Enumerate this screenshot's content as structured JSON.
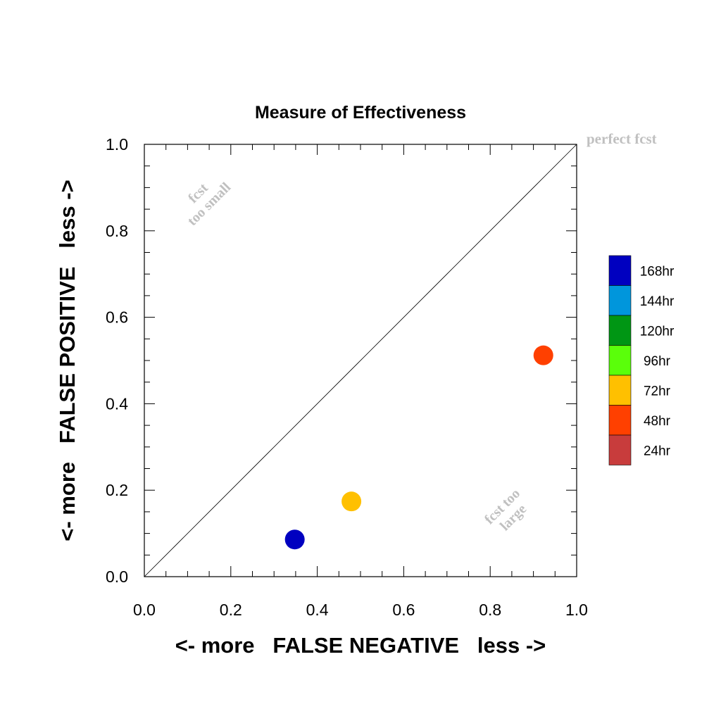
{
  "chart_data": {
    "type": "scatter",
    "title": "Measure of Effectiveness",
    "xlabel": "<- more   FALSE NEGATIVE   less ->",
    "ylabel": "<- more   FALSE POSITIVE   less ->",
    "xlim": [
      0.0,
      1.0
    ],
    "ylim": [
      0.0,
      1.0
    ],
    "xticks": [
      "0.0",
      "0.2",
      "0.4",
      "0.6",
      "0.8",
      "1.0"
    ],
    "yticks": [
      "0.0",
      "0.2",
      "0.4",
      "0.6",
      "0.8",
      "1.0"
    ],
    "grid": false,
    "diagonal_reference": true,
    "annotations": {
      "perfect": "perfect fcst",
      "small_line1": "fcst",
      "small_line2": "too small",
      "large_line1": "fcst too",
      "large_line2": "large"
    },
    "legend": {
      "position": "right",
      "entries": [
        {
          "label": "168hr",
          "color": "#0000c0"
        },
        {
          "label": "144hr",
          "color": "#0096dc"
        },
        {
          "label": "120hr",
          "color": "#009614"
        },
        {
          "label": "96hr",
          "color": "#5aff0a"
        },
        {
          "label": "72hr",
          "color": "#ffc000"
        },
        {
          "label": "48hr",
          "color": "#ff4000"
        },
        {
          "label": "24hr",
          "color": "#c83c3c"
        }
      ]
    },
    "points": [
      {
        "lead": "168hr",
        "x": 0.348,
        "y": 0.086,
        "color": "#0000c0"
      },
      {
        "lead": "72hr",
        "x": 0.479,
        "y": 0.174,
        "color": "#ffc000"
      },
      {
        "lead": "48hr",
        "x": 0.923,
        "y": 0.512,
        "color": "#ff4000"
      }
    ]
  }
}
